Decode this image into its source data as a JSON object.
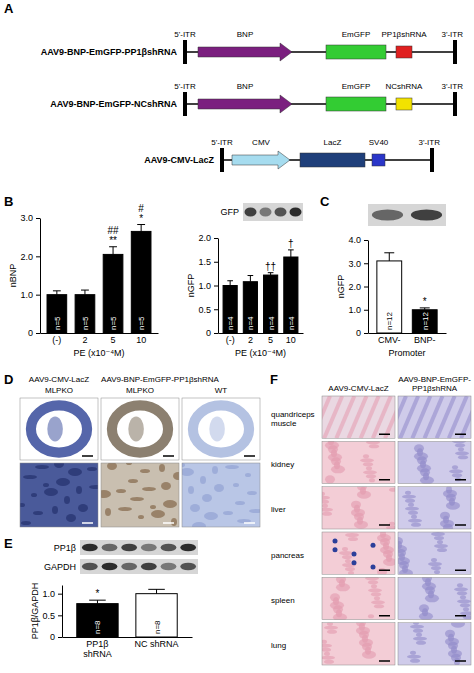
{
  "panels": [
    "A",
    "B",
    "C",
    "D",
    "E",
    "F"
  ],
  "diagram": {
    "constructs": [
      {
        "name": "AAV9-BNP-EmGFP-PP1βshRNA",
        "elements": [
          "5'-ITR",
          "BNP",
          "EmGFP",
          "PP1βshRNA",
          "3'-ITR"
        ],
        "colors": [
          "#000000",
          "#7b1f7f",
          "#33cc33",
          "#e02020",
          "#000000"
        ]
      },
      {
        "name": "AAV9-BNP-EmGFP-NCshRNA",
        "elements": [
          "5'-ITR",
          "BNP",
          "EmGFP",
          "NCshRNA",
          "3'-ITR"
        ],
        "colors": [
          "#000000",
          "#7b1f7f",
          "#33cc33",
          "#f2e200",
          "#000000"
        ]
      },
      {
        "name": "AAV9-CMV-LacZ",
        "elements": [
          "5'-ITR",
          "CMV",
          "LacZ",
          "SV40",
          "3'-ITR"
        ],
        "colors": [
          "#000000",
          "#a6dcef",
          "#1f3f7a",
          "#2a36c8",
          "#000000"
        ]
      }
    ]
  },
  "chart_data": [
    {
      "type": "bar",
      "ylabel": "nBNP",
      "xlabel": "PE (x10⁻⁴M)",
      "categories": [
        "(-)",
        "2",
        "5",
        "10"
      ],
      "values": [
        1.0,
        1.0,
        2.05,
        2.65
      ],
      "errors": [
        0.1,
        0.12,
        0.2,
        0.18
      ],
      "n_labels": [
        "n=5",
        "n=5",
        "n=5",
        "n=5"
      ],
      "annotations": [
        {
          "index": 2,
          "texts": [
            "##",
            "**"
          ]
        },
        {
          "index": 3,
          "texts": [
            "#",
            "*"
          ]
        }
      ],
      "color": "#000000",
      "ylim": [
        0,
        3
      ],
      "yticks": [
        0,
        {
          "value": 1,
          "label": "1.0"
        },
        {
          "value": 2,
          "label": "2.0"
        },
        {
          "value": 3,
          "label": "3.0"
        }
      ]
    },
    {
      "type": "bar",
      "ylabel": "nGFP",
      "xlabel": "PE (x10⁻⁴M)",
      "blot_labels": [
        "GFP"
      ],
      "categories": [
        "(-)",
        "2",
        "5",
        "10"
      ],
      "values": [
        1.0,
        1.08,
        1.22,
        1.6
      ],
      "errors": [
        0.1,
        0.13,
        0.05,
        0.15
      ],
      "n_labels": [
        "n=4",
        "n=4",
        "n=4",
        "n=4"
      ],
      "annotations": [
        {
          "index": 2,
          "texts": [
            "††"
          ]
        },
        {
          "index": 3,
          "texts": [
            "†"
          ]
        }
      ],
      "color": "#000000",
      "ylim": [
        0,
        2
      ],
      "yticks": [
        0,
        0.5,
        {
          "value": 1,
          "label": "1.0"
        },
        1.5,
        {
          "value": 2,
          "label": "2.0"
        }
      ]
    },
    {
      "type": "bar",
      "ylabel": "nGFP",
      "xlabel": "Promoter",
      "categories": [
        "CMV-",
        "BNP-"
      ],
      "values": [
        3.1,
        1.0
      ],
      "errors": [
        0.35,
        0.08
      ],
      "colors": [
        "#ffffff",
        "#000000"
      ],
      "n_labels": [
        "n=12",
        "n=12"
      ],
      "annotations": [
        {
          "index": 1,
          "texts": [
            "*"
          ]
        }
      ],
      "ylim": [
        0,
        4
      ],
      "yticks": [
        0,
        {
          "value": 1,
          "label": "1.0"
        },
        {
          "value": 2,
          "label": "2.0"
        },
        {
          "value": 3,
          "label": "3.0"
        },
        {
          "value": 4,
          "label": "4.0"
        }
      ]
    },
    {
      "type": "bar",
      "ylabel": "PP1β/GAPDH",
      "blot_labels": [
        "PP1β",
        "GAPDH"
      ],
      "categories": [
        "PP1β shRNA",
        "NC shRNA"
      ],
      "values": [
        0.77,
        1.0
      ],
      "errors": [
        0.08,
        0.1
      ],
      "colors": [
        "#000000",
        "#ffffff"
      ],
      "n_labels": [
        "n=8",
        "n=8"
      ],
      "annotations": [
        {
          "index": 0,
          "texts": [
            "*"
          ]
        }
      ],
      "ylim": [
        0,
        1.2
      ],
      "yticks": [
        0,
        0.5,
        {
          "value": 1,
          "label": "1.0"
        }
      ]
    }
  ],
  "panel_d": {
    "columns": [
      {
        "construct": "AAV9-CMV-LacZ",
        "mouse": "MLPKO"
      },
      {
        "construct": "AAV9-BNP-EmGFP-PP1βshRNA",
        "mouse": "MLPKO"
      },
      {
        "mouse": "WT"
      }
    ]
  },
  "panel_f": {
    "columns": [
      "AAV9-CMV-LacZ",
      "AAV9-BNP-EmGFP-PP1βshRNA"
    ],
    "rows": [
      "quandriceps muscle",
      "kidney",
      "liver",
      "pancreas",
      "spleen",
      "lung"
    ]
  }
}
